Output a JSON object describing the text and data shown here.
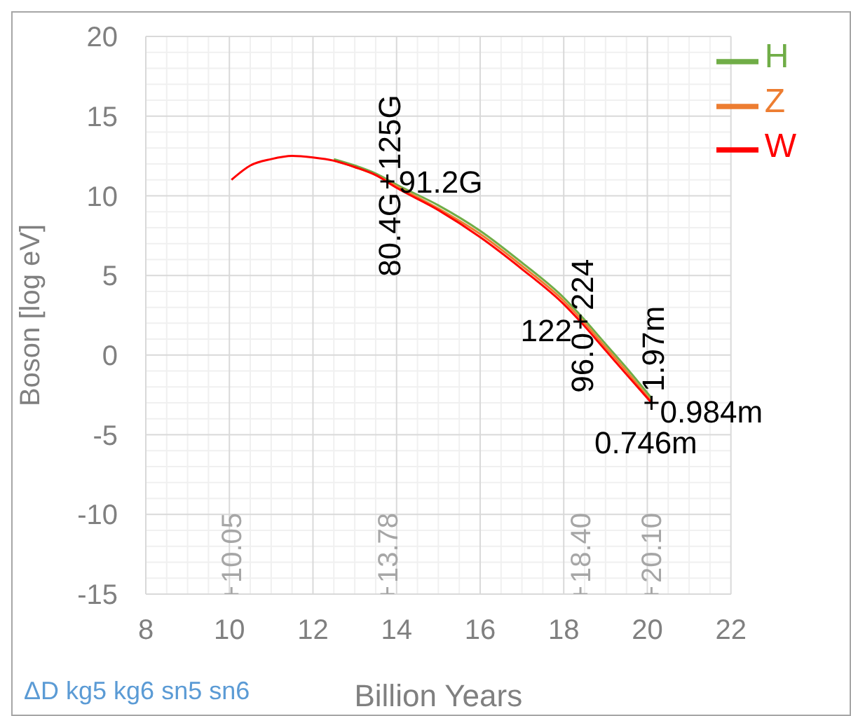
{
  "chart_data": {
    "type": "line",
    "xlabel": "Billion Years",
    "ylabel": "Boson [log eV]",
    "xlim": [
      8,
      22
    ],
    "xticks": [
      8,
      10,
      12,
      14,
      16,
      18,
      20,
      22
    ],
    "ylim": [
      -15,
      20
    ],
    "yticks": [
      -15,
      -10,
      -5,
      0,
      5,
      10,
      15,
      20
    ],
    "grid": true,
    "legend": "top right",
    "marker": "none",
    "series": [
      {
        "name": "H",
        "color": "#70ad47",
        "x": [
          12.5,
          13,
          13.5,
          14,
          15,
          16,
          17,
          18,
          18.4,
          19,
          19.5,
          20.1
        ],
        "values": [
          12.3,
          11.9,
          11.4,
          10.7,
          9.4,
          7.8,
          5.8,
          3.6,
          2.5,
          0.7,
          -0.8,
          -2.7
        ]
      },
      {
        "name": "Z",
        "color": "#ed7d31",
        "x": [
          12.5,
          13,
          13.5,
          14,
          15,
          16,
          17,
          18,
          18.4,
          19,
          19.5,
          20.1
        ],
        "values": [
          12.2,
          11.8,
          11.3,
          10.6,
          9.2,
          7.6,
          5.6,
          3.4,
          2.3,
          0.5,
          -1.0,
          -2.9
        ]
      },
      {
        "name": "W",
        "color": "#ff0000",
        "x": [
          10.05,
          10.5,
          11,
          11.5,
          12,
          12.5,
          13,
          13.5,
          14,
          15,
          16,
          17,
          18,
          18.4,
          19,
          19.5,
          20.1
        ],
        "values": [
          11.0,
          11.9,
          12.3,
          12.5,
          12.4,
          12.2,
          11.8,
          11.3,
          10.5,
          9.1,
          7.4,
          5.4,
          3.2,
          2.1,
          0.3,
          -1.2,
          -3.0
        ]
      },
      {
        "type": "scatter",
        "marker": "cross",
        "color": "#000000",
        "x": [
          13.78,
          18.4,
          20.1
        ],
        "values": [
          10.9,
          2.1,
          -3.0
        ]
      },
      {
        "type": "scatter",
        "marker": "cross",
        "color": "#a6a6a6",
        "x": [
          10.05,
          13.78,
          18.4,
          20.1
        ],
        "values": [
          -15,
          -15,
          -15,
          -15
        ]
      }
    ],
    "annotations": [
      {
        "text": "80.4G",
        "x": 13.78,
        "y": 10.9
      },
      {
        "text": "125G",
        "x": 13.78,
        "y": 10.9
      },
      {
        "text": "91.2G",
        "x": 13.78,
        "y": 10.9
      },
      {
        "text": "122",
        "x": 18.4,
        "y": 2.1
      },
      {
        "text": "96.0",
        "x": 18.4,
        "y": 2.1
      },
      {
        "text": "224",
        "x": 18.4,
        "y": 2.1
      },
      {
        "text": "1.97m",
        "x": 20.1,
        "y": -3.0
      },
      {
        "text": "0.984m",
        "x": 20.1,
        "y": -3.0
      },
      {
        "text": "0.746m",
        "x": 20.1,
        "y": -3.0
      },
      {
        "text": "10.05",
        "x": 10.05,
        "y": -15
      },
      {
        "text": "13.78",
        "x": 13.78,
        "y": -15
      },
      {
        "text": "18.40",
        "x": 18.4,
        "y": -15
      },
      {
        "text": "20.10",
        "x": 20.1,
        "y": -15
      },
      "ΔD kg5 kg6 sn5 sn6"
    ]
  }
}
